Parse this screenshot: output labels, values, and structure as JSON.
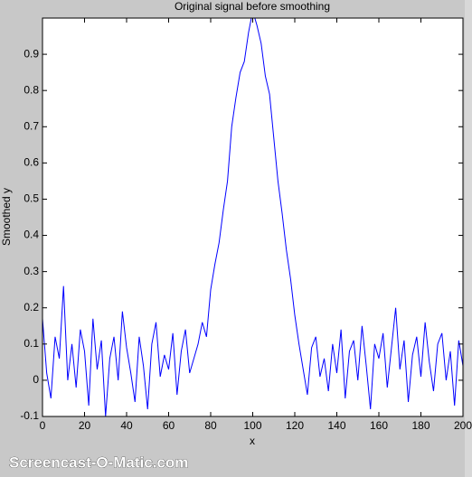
{
  "chart_data": {
    "type": "line",
    "title": "Original signal before smoothing",
    "xlabel": "x",
    "ylabel": "Smoothed y",
    "watermark": "Screencast-O-Matic.com",
    "xlim": [
      0,
      200
    ],
    "xticks": [
      0,
      20,
      40,
      60,
      80,
      100,
      120,
      140,
      160,
      180,
      200
    ],
    "ylim": [
      -0.1,
      1
    ],
    "yticks": [
      -0.1,
      0,
      0.1,
      0.2,
      0.3,
      0.4,
      0.5,
      0.6,
      0.7,
      0.8,
      0.9
    ],
    "series": [
      {
        "color": "#0000ff",
        "x": [
          0,
          2,
          4,
          6,
          8,
          10,
          12,
          14,
          16,
          18,
          20,
          22,
          24,
          26,
          28,
          30,
          32,
          34,
          36,
          38,
          40,
          42,
          44,
          46,
          48,
          50,
          52,
          54,
          56,
          58,
          60,
          62,
          64,
          66,
          68,
          70,
          72,
          74,
          76,
          78,
          80,
          82,
          84,
          86,
          88,
          90,
          92,
          94,
          96,
          98,
          100,
          102,
          104,
          106,
          108,
          110,
          112,
          114,
          116,
          118,
          120,
          122,
          124,
          126,
          128,
          130,
          132,
          134,
          136,
          138,
          140,
          142,
          144,
          146,
          148,
          150,
          152,
          154,
          156,
          158,
          160,
          162,
          164,
          166,
          168,
          170,
          172,
          174,
          176,
          178,
          180,
          182,
          184,
          186,
          188,
          190,
          192,
          194,
          196,
          198,
          200
        ],
        "values": [
          0.17,
          0.02,
          -0.05,
          0.12,
          0.06,
          0.26,
          0.0,
          0.1,
          -0.02,
          0.14,
          0.08,
          -0.07,
          0.17,
          0.03,
          0.11,
          -0.1,
          0.06,
          0.12,
          0.0,
          0.19,
          0.09,
          0.02,
          -0.06,
          0.12,
          0.04,
          -0.08,
          0.1,
          0.16,
          0.01,
          0.07,
          0.03,
          0.13,
          -0.04,
          0.08,
          0.14,
          0.02,
          0.06,
          0.1,
          0.16,
          0.12,
          0.25,
          0.32,
          0.38,
          0.47,
          0.55,
          0.7,
          0.78,
          0.85,
          0.88,
          0.96,
          1.02,
          0.98,
          0.93,
          0.84,
          0.79,
          0.67,
          0.55,
          0.46,
          0.36,
          0.28,
          0.18,
          0.1,
          0.03,
          -0.04,
          0.09,
          0.12,
          0.01,
          0.06,
          -0.03,
          0.1,
          0.02,
          0.14,
          -0.05,
          0.08,
          0.11,
          0.0,
          0.15,
          0.04,
          -0.08,
          0.1,
          0.06,
          0.13,
          -0.02,
          0.09,
          0.2,
          0.03,
          0.11,
          -0.06,
          0.07,
          0.12,
          0.01,
          0.16,
          0.05,
          -0.03,
          0.1,
          0.13,
          0.0,
          0.08,
          -0.07,
          0.11,
          0.04
        ]
      }
    ]
  }
}
